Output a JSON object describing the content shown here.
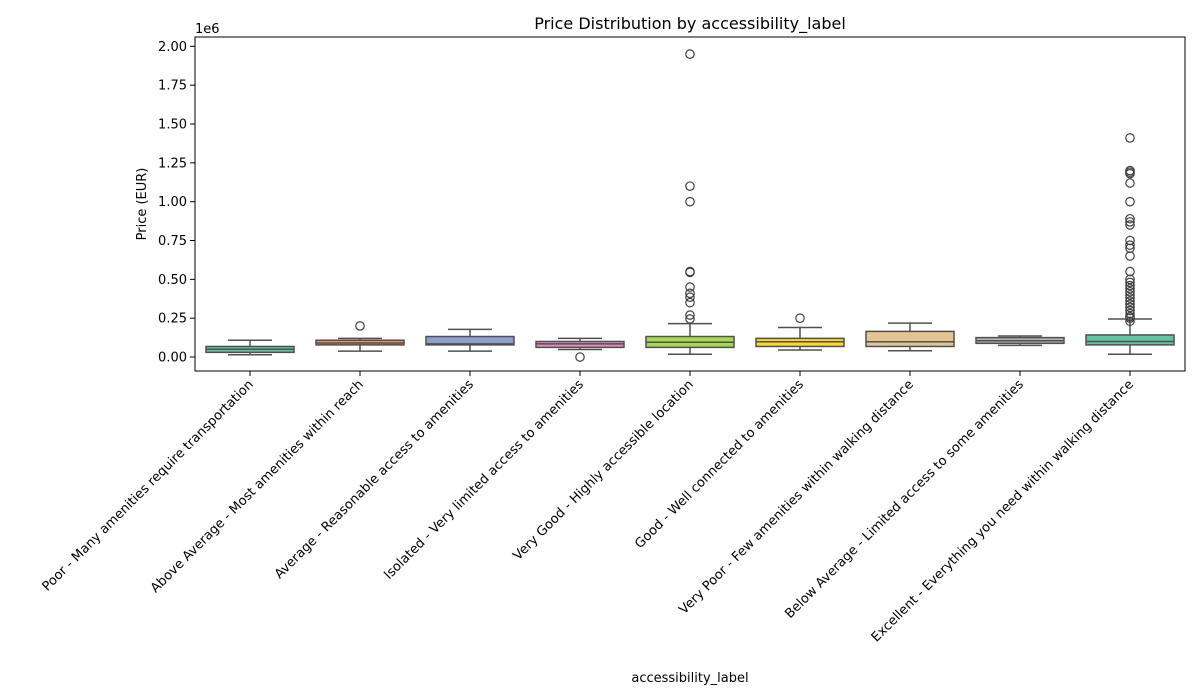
{
  "chart_data": {
    "type": "box",
    "title": "Price Distribution by accessibility_label",
    "xlabel": "accessibility_label",
    "ylabel": "Price (EUR)",
    "y_offset_label": "1e6",
    "y_scale": 1000000,
    "ylim": [
      -0.09,
      2.06
    ],
    "y_ticks": [
      0.0,
      0.25,
      0.5,
      0.75,
      1.0,
      1.25,
      1.5,
      1.75,
      2.0
    ],
    "y_tick_labels": [
      "0.00",
      "0.25",
      "0.50",
      "0.75",
      "1.00",
      "1.25",
      "1.50",
      "1.75",
      "2.00"
    ],
    "grid": false,
    "legend": "none",
    "categories": [
      "Poor - Many amenities require transportation",
      "Above Average - Most amenities within reach",
      "Average - Reasonable access to amenities",
      "Isolated - Very limited access to amenities",
      "Very Good - Highly accessible location",
      "Good - Well connected to amenities",
      "Very Poor - Few amenities within walking distance",
      "Below Average - Limited access to some amenities",
      "Excellent - Everything you need within walking distance"
    ],
    "boxes": [
      {
        "label": "Poor - Many amenities require transportation",
        "whisker_low": 0.015,
        "q1": 0.03,
        "median": 0.05,
        "q3": 0.068,
        "whisker_high": 0.108,
        "outliers": [],
        "color": "#66c2a5"
      },
      {
        "label": "Above Average - Most amenities within reach",
        "whisker_low": 0.038,
        "q1": 0.078,
        "median": 0.09,
        "q3": 0.108,
        "whisker_high": 0.12,
        "outliers": [
          0.2
        ],
        "color": "#fc8d62"
      },
      {
        "label": "Average - Reasonable access to amenities",
        "whisker_low": 0.038,
        "q1": 0.078,
        "median": 0.085,
        "q3": 0.132,
        "whisker_high": 0.178,
        "outliers": [],
        "color": "#8da0cb"
      },
      {
        "label": "Isolated - Very limited access to amenities",
        "whisker_low": 0.048,
        "q1": 0.062,
        "median": 0.085,
        "q3": 0.1,
        "whisker_high": 0.12,
        "outliers": [
          0.0
        ],
        "color": "#e78ac3"
      },
      {
        "label": "Very Good - Highly accessible location",
        "whisker_low": 0.018,
        "q1": 0.062,
        "median": 0.095,
        "q3": 0.132,
        "whisker_high": 0.215,
        "outliers": [
          0.245,
          0.27,
          0.35,
          0.385,
          0.41,
          0.45,
          0.545,
          0.55,
          1.0,
          1.1,
          1.95
        ],
        "color": "#a6d854"
      },
      {
        "label": "Good - Well connected to amenities",
        "whisker_low": 0.045,
        "q1": 0.068,
        "median": 0.098,
        "q3": 0.12,
        "whisker_high": 0.19,
        "outliers": [
          0.25
        ],
        "color": "#ffd92f"
      },
      {
        "label": "Very Poor - Few amenities within walking distance",
        "whisker_low": 0.04,
        "q1": 0.068,
        "median": 0.098,
        "q3": 0.165,
        "whisker_high": 0.218,
        "outliers": [],
        "color": "#e5c494"
      },
      {
        "label": "Below Average - Limited access to some amenities",
        "whisker_low": 0.075,
        "q1": 0.088,
        "median": 0.105,
        "q3": 0.125,
        "whisker_high": 0.135,
        "outliers": [],
        "color": "#b3b3b3"
      },
      {
        "label": "Excellent - Everything you need within walking distance",
        "whisker_low": 0.018,
        "q1": 0.078,
        "median": 0.1,
        "q3": 0.142,
        "whisker_high": 0.245,
        "outliers": [
          0.23,
          0.25,
          0.26,
          0.28,
          0.3,
          0.32,
          0.34,
          0.36,
          0.38,
          0.4,
          0.42,
          0.44,
          0.46,
          0.48,
          0.5,
          0.55,
          0.65,
          0.7,
          0.72,
          0.75,
          0.85,
          0.87,
          0.89,
          1.0,
          1.12,
          1.18,
          1.19,
          1.2,
          1.41
        ],
        "color": "#66c2a5"
      }
    ]
  }
}
